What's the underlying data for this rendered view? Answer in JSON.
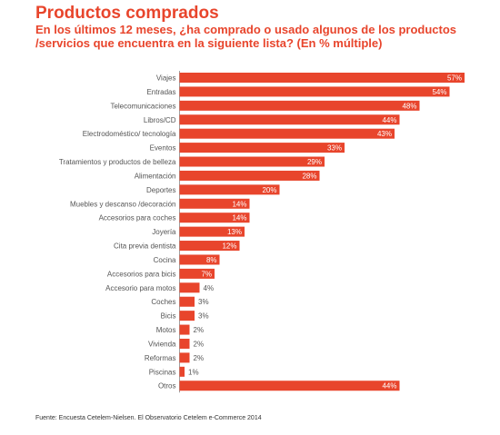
{
  "header": {
    "title": "Productos comprados",
    "subtitle": "En los últimos 12 meses, ¿ha comprado o usado algunos de los productos /servicios que encuentra en la siguiente lista? (En % múltiple)"
  },
  "footer": {
    "source": "Fuente: Encuesta Cetelem-Nielsen. El Observatorio Cetelem e-Commerce 2014"
  },
  "colors": {
    "bar": "#e8452c",
    "label_inside": "#ffffff",
    "label_outside": "#555555",
    "category_text": "#555555",
    "axis_line": "#888888"
  },
  "chart_data": {
    "type": "bar",
    "orientation": "horizontal",
    "unit": "%",
    "categories": [
      "Viajes",
      "Entradas",
      "Telecomunicaciones",
      "Libros/CD",
      "Electrodoméstico/ tecnología",
      "Eventos",
      "Tratamientos y productos de belleza",
      "Alimentación",
      "Deportes",
      "Muebles y descanso /decoración",
      "Accesorios para coches",
      "Joyería",
      "Cita previa dentista",
      "Cocina",
      "Accesorios para bicis",
      "Accesorio para motos",
      "Coches",
      "Bicis",
      "Motos",
      "Vivienda",
      "Reformas",
      "Piscinas",
      "Otros"
    ],
    "values": [
      57,
      54,
      48,
      44,
      43,
      33,
      29,
      28,
      20,
      14,
      14,
      13,
      12,
      8,
      7,
      4,
      3,
      3,
      2,
      2,
      2,
      1,
      44
    ],
    "labels": [
      "57%",
      "54%",
      "48%",
      "44%",
      "43%",
      "33%",
      "29%",
      "28%",
      "20%",
      "14%",
      "14%",
      "13%",
      "12%",
      "8%",
      "7%",
      "4%",
      "3%",
      "3%",
      "2%",
      "2%",
      "2%",
      "1%",
      "44%"
    ],
    "xlim": [
      0,
      57
    ],
    "grid": false,
    "legend": "none"
  }
}
